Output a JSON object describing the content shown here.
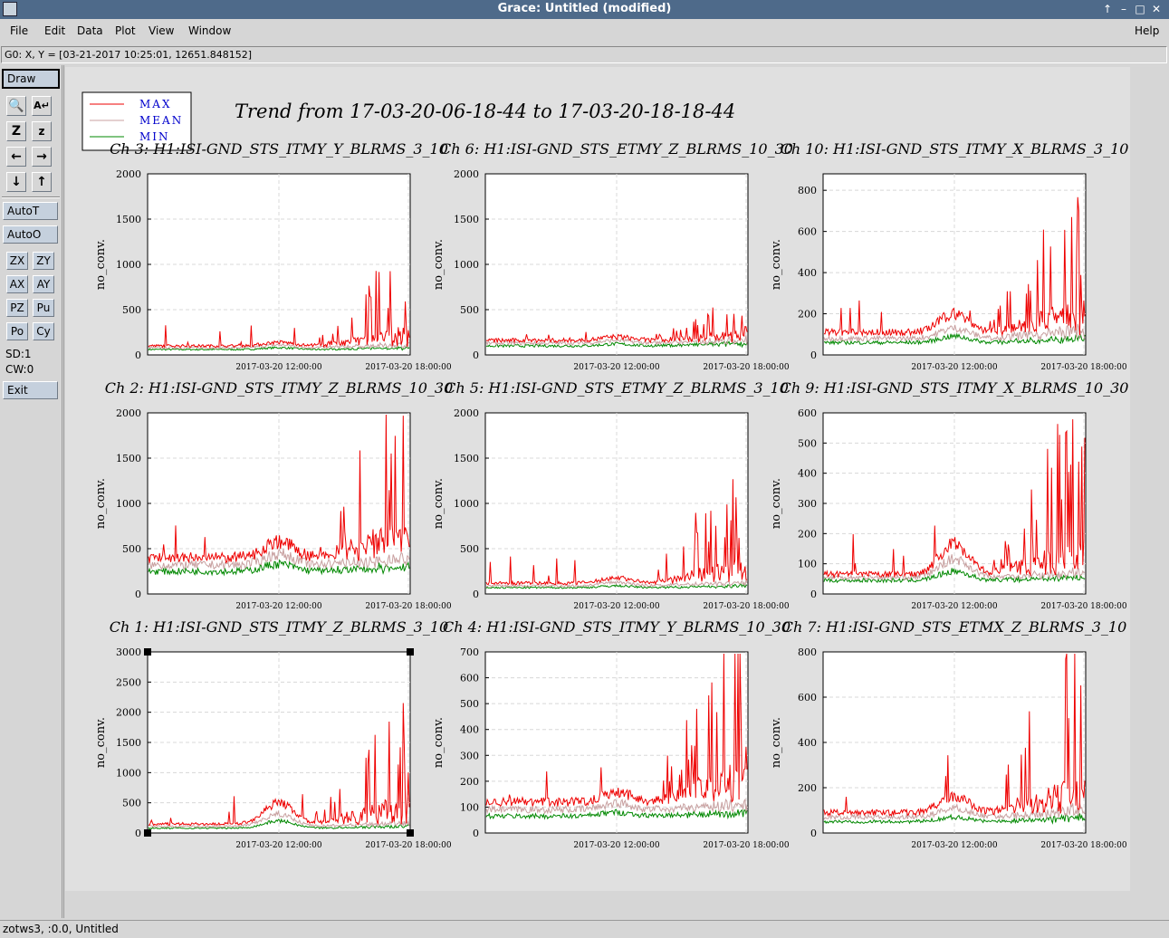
{
  "window": {
    "title": "Grace: Untitled (modified)",
    "controls": [
      "arrow-up-icon",
      "minimize-icon",
      "maximize-icon",
      "close-icon"
    ]
  },
  "menubar": {
    "items": [
      "File",
      "Edit",
      "Data",
      "Plot",
      "View",
      "Window"
    ],
    "help": "Help"
  },
  "locator": "G0: X, Y = [03-21-2017 10:25:01, 12651.848152]",
  "toolbar": {
    "draw": "Draw",
    "autot": "AutoT",
    "autoo": "AutoO",
    "zx": "ZX",
    "zy": "ZY",
    "ax": "AX",
    "ay": "AY",
    "pz": "PZ",
    "pu": "Pu",
    "po": "Po",
    "cy": "Cy",
    "sd": "SD:1",
    "cw": "CW:0",
    "exit": "Exit"
  },
  "statusbar": "zotws3, :0.0, Untitled",
  "plot": {
    "title": "Trend from 17-03-20-06-18-44 to 17-03-20-18-18-44",
    "legend": [
      "MAX",
      "MEAN",
      "MIN"
    ],
    "colors": {
      "max": "#ee0000",
      "mean": "#c8a0a0",
      "min": "#008800",
      "legend_text": "#0000cc"
    }
  },
  "chart_data": [
    {
      "type": "line",
      "title": "Ch 3: H1:ISI-GND_STS_ITMY_Y_BLRMS_3_10",
      "ylabel": "no_conv.",
      "ylim": [
        0,
        2000
      ],
      "yticks": [
        "0",
        "500",
        "1000",
        "1500",
        "2000"
      ],
      "xticks": [
        "2017-03-20 12:00:00",
        "2017-03-20 18:00:00"
      ],
      "base": [
        100,
        80,
        60
      ],
      "bump": [
        40,
        30,
        20
      ],
      "late": [
        900,
        250,
        120
      ],
      "series": [
        "MAX",
        "MEAN",
        "MIN"
      ]
    },
    {
      "type": "line",
      "title": "Ch 6: H1:ISI-GND_STS_ETMY_Z_BLRMS_10_30",
      "ylabel": "no_conv.",
      "ylim": [
        0,
        2000
      ],
      "yticks": [
        "0",
        "500",
        "1000",
        "1500",
        "2000"
      ],
      "xticks": [
        "2017-03-20 12:00:00",
        "2017-03-20 18:00:00"
      ],
      "base": [
        160,
        130,
        100
      ],
      "bump": [
        40,
        30,
        20
      ],
      "late": [
        450,
        300,
        200
      ],
      "series": [
        "MAX",
        "MEAN",
        "MIN"
      ]
    },
    {
      "type": "line",
      "title": "Ch 10: H1:ISI-GND_STS_ITMY_X_BLRMS_3_10",
      "ylabel": "no_conv.",
      "ylim": [
        0,
        880
      ],
      "yticks": [
        "0",
        "200",
        "400",
        "600",
        "800"
      ],
      "xticks": [
        "2017-03-20 12:00:00",
        "2017-03-20 18:00:00"
      ],
      "base": [
        110,
        80,
        60
      ],
      "bump": [
        90,
        50,
        30
      ],
      "late": [
        700,
        300,
        150
      ],
      "series": [
        "MAX",
        "MEAN",
        "MIN"
      ]
    },
    {
      "type": "line",
      "title": "Ch 2: H1:ISI-GND_STS_ITMY_Z_BLRMS_10_30",
      "ylabel": "no_conv.",
      "ylim": [
        0,
        2000
      ],
      "yticks": [
        "0",
        "500",
        "1000",
        "1500",
        "2000"
      ],
      "xticks": [
        "2017-03-20 12:00:00",
        "2017-03-20 18:00:00"
      ],
      "base": [
        400,
        320,
        250
      ],
      "bump": [
        180,
        120,
        80
      ],
      "late": [
        1800,
        500,
        350
      ],
      "series": [
        "MAX",
        "MEAN",
        "MIN"
      ]
    },
    {
      "type": "line",
      "title": "Ch 5: H1:ISI-GND_STS_ETMY_Z_BLRMS_3_10",
      "ylabel": "no_conv.",
      "ylim": [
        0,
        2000
      ],
      "yticks": [
        "0",
        "500",
        "1000",
        "1500",
        "2000"
      ],
      "xticks": [
        "2017-03-20 12:00:00",
        "2017-03-20 18:00:00"
      ],
      "base": [
        120,
        90,
        70
      ],
      "bump": [
        60,
        40,
        20
      ],
      "late": [
        1300,
        300,
        150
      ],
      "series": [
        "MAX",
        "MEAN",
        "MIN"
      ]
    },
    {
      "type": "line",
      "title": "Ch 9: H1:ISI-GND_STS_ITMY_X_BLRMS_10_30",
      "ylabel": "no_conv.",
      "ylim": [
        0,
        600
      ],
      "yticks": [
        "0",
        "100",
        "200",
        "300",
        "400",
        "500",
        "600"
      ],
      "xticks": [
        "2017-03-20 12:00:00",
        "2017-03-20 18:00:00"
      ],
      "base": [
        65,
        55,
        45
      ],
      "bump": [
        100,
        60,
        30
      ],
      "late": [
        550,
        120,
        80
      ],
      "series": [
        "MAX",
        "MEAN",
        "MIN"
      ]
    },
    {
      "type": "line",
      "title": "Ch 1: H1:ISI-GND_STS_ITMY_Z_BLRMS_3_10",
      "ylabel": "no_conv.",
      "ylim": [
        0,
        3000
      ],
      "yticks": [
        "0",
        "500",
        "1000",
        "1500",
        "2000",
        "2500",
        "3000"
      ],
      "xticks": [
        "2017-03-20 12:00:00",
        "2017-03-20 18:00:00"
      ],
      "base": [
        150,
        110,
        80
      ],
      "bump": [
        350,
        200,
        120
      ],
      "late": [
        2100,
        400,
        250
      ],
      "series": [
        "MAX",
        "MEAN",
        "MIN"
      ]
    },
    {
      "type": "line",
      "title": "Ch 4: H1:ISI-GND_STS_ITMY_Y_BLRMS_10_30",
      "ylabel": "no_conv.",
      "ylim": [
        0,
        700
      ],
      "yticks": [
        "0",
        "100",
        "200",
        "300",
        "400",
        "500",
        "600",
        "700"
      ],
      "xticks": [
        "2017-03-20 12:00:00",
        "2017-03-20 18:00:00"
      ],
      "base": [
        120,
        90,
        65
      ],
      "bump": [
        40,
        25,
        15
      ],
      "late": [
        650,
        160,
        90
      ],
      "series": [
        "MAX",
        "MEAN",
        "MIN"
      ]
    },
    {
      "type": "line",
      "title": "Ch 7: H1:ISI-GND_STS_ETMX_Z_BLRMS_3_10",
      "ylabel": "no_conv.",
      "ylim": [
        0,
        800
      ],
      "yticks": [
        "0",
        "200",
        "400",
        "600",
        "800"
      ],
      "xticks": [
        "2017-03-20 12:00:00",
        "2017-03-20 18:00:00"
      ],
      "base": [
        90,
        70,
        50
      ],
      "bump": [
        70,
        40,
        20
      ],
      "late": [
        750,
        250,
        150
      ],
      "series": [
        "MAX",
        "MEAN",
        "MIN"
      ]
    }
  ]
}
